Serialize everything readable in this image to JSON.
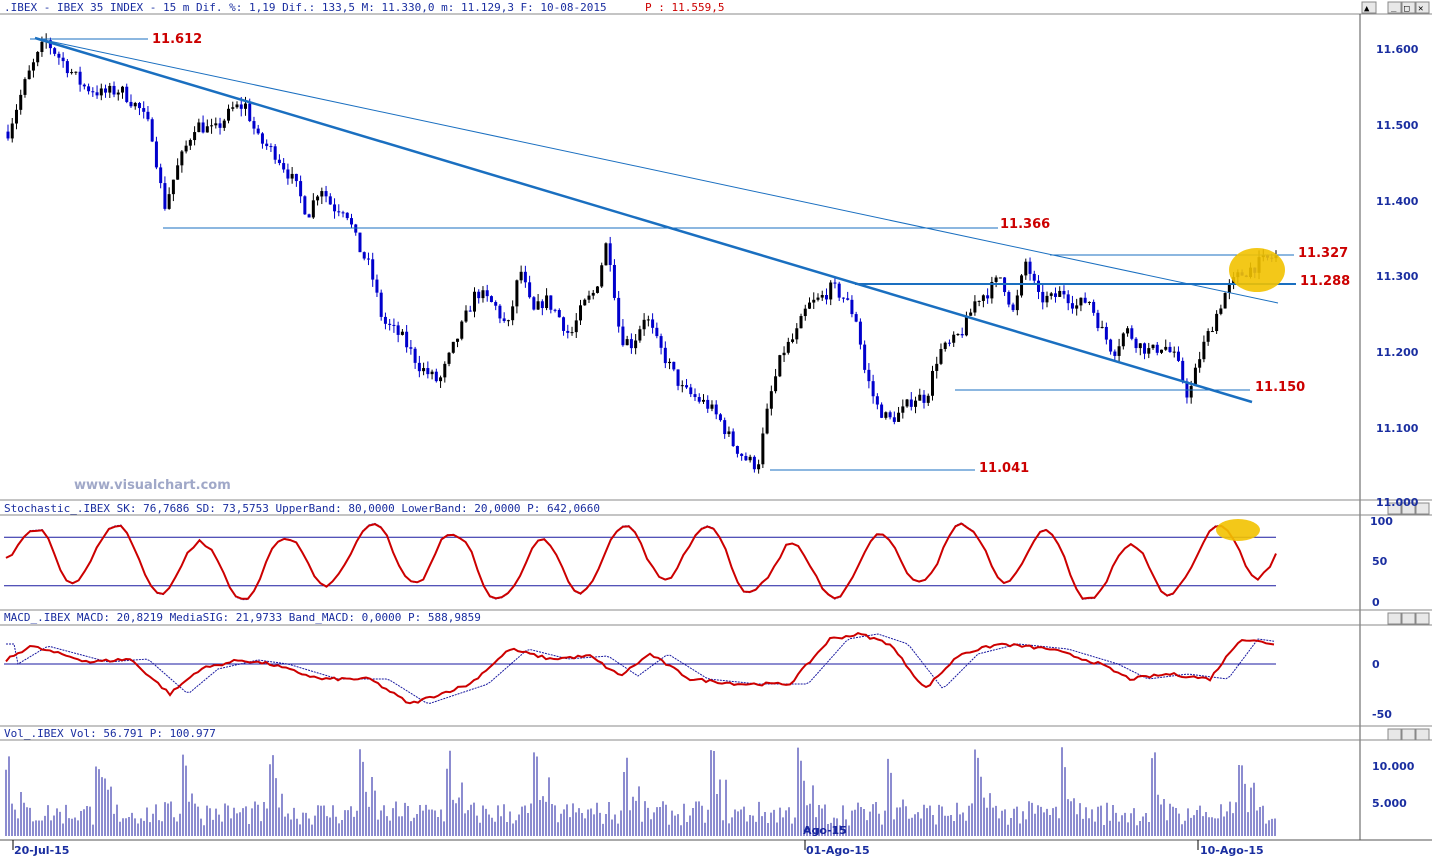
{
  "price_panel": {
    "header_text": ".IBEX - IBEX 35 INDEX -  15 m Dif. %: 1,19 Dif.: 133,5 M: 11.330,0 m: 11.129,3 F: 10-08-2015",
    "header_last": "P : 11.559,5",
    "watermark": "www.visualchart.com",
    "axis_ticks": [
      "11.600",
      "11.500",
      "11.400",
      "11.300",
      "11.200",
      "11.100",
      "11.000"
    ],
    "levels": [
      {
        "label": "11.612"
      },
      {
        "label": "11.366"
      },
      {
        "label": "11.327"
      },
      {
        "label": "11.288"
      },
      {
        "label": "11.150"
      },
      {
        "label": "11.041"
      }
    ]
  },
  "stoch_panel": {
    "header_text": "Stochastic_.IBEX SK: 76,7686 SD: 73,5753 UpperBand: 80,0000 LowerBand: 20,0000 P: 642,0660",
    "axis_ticks": [
      "100",
      "50",
      "0"
    ]
  },
  "macd_panel": {
    "header_text": "MACD_.IBEX MACD: 20,8219 MediaSIG: 21,9733 Band_MACD: 0,0000 P: 588,9859",
    "axis_ticks": [
      "0",
      "-50"
    ]
  },
  "vol_panel": {
    "header_text": "Vol_.IBEX Vol: 56.791 P: 100.977",
    "axis_ticks": [
      "10.000",
      "5.000"
    ],
    "inline_date": "Ago-15"
  },
  "x_axis": {
    "labels": [
      "20-Jul-15",
      "01-Ago-15",
      "10-Ago-15"
    ]
  },
  "window_buttons": [
    "▲",
    "_",
    "□",
    "✕"
  ],
  "colors": {
    "price_blue": "#0000cc",
    "price_black": "#000000",
    "trendline": "#1a6fc0",
    "level_text": "#cc0000",
    "axis_text": "#1a2ea0",
    "stoch_line": "#cc0000",
    "macd_line": "#cc0000",
    "volume": "#1a1aa0",
    "highlight": "#f2c200"
  },
  "chart_data": [
    {
      "type": "candlestick",
      "title": ".IBEX - IBEX 35 INDEX - 15 m",
      "ylim": [
        11000,
        11660
      ],
      "x_labels": [
        "20-Jul-15",
        "01-Ago-15",
        "10-Ago-15"
      ],
      "key_levels": [
        11612,
        11366,
        11327,
        11288,
        11150,
        11041
      ],
      "close_path": [
        [
          0,
          11490
        ],
        [
          3,
          11560
        ],
        [
          6,
          11610
        ],
        [
          9,
          11580
        ],
        [
          12,
          11550
        ],
        [
          15,
          11540
        ],
        [
          18,
          11545
        ],
        [
          21,
          11520
        ],
        [
          23,
          11490
        ],
        [
          25,
          11390
        ],
        [
          27,
          11440
        ],
        [
          30,
          11500
        ],
        [
          33,
          11490
        ],
        [
          36,
          11520
        ],
        [
          38,
          11525
        ],
        [
          40,
          11480
        ],
        [
          43,
          11460
        ],
        [
          46,
          11420
        ],
        [
          48,
          11380
        ],
        [
          50,
          11420
        ],
        [
          52,
          11390
        ],
        [
          54,
          11390
        ],
        [
          56,
          11340
        ],
        [
          58,
          11310
        ],
        [
          60,
          11240
        ],
        [
          63,
          11220
        ],
        [
          66,
          11180
        ],
        [
          69,
          11160
        ],
        [
          72,
          11220
        ],
        [
          75,
          11280
        ],
        [
          78,
          11260
        ],
        [
          80,
          11230
        ],
        [
          82,
          11310
        ],
        [
          84,
          11250
        ],
        [
          86,
          11270
        ],
        [
          88,
          11250
        ],
        [
          90,
          11220
        ],
        [
          92,
          11260
        ],
        [
          94,
          11280
        ],
        [
          96,
          11350
        ],
        [
          98,
          11220
        ],
        [
          100,
          11210
        ],
        [
          102,
          11250
        ],
        [
          104,
          11210
        ],
        [
          106,
          11180
        ],
        [
          108,
          11150
        ],
        [
          110,
          11140
        ],
        [
          112,
          11130
        ],
        [
          114,
          11110
        ],
        [
          116,
          11080
        ],
        [
          118,
          11060
        ],
        [
          120,
          11050
        ],
        [
          122,
          11140
        ],
        [
          124,
          11200
        ],
        [
          126,
          11220
        ],
        [
          128,
          11260
        ],
        [
          130,
          11270
        ],
        [
          132,
          11285
        ],
        [
          134,
          11270
        ],
        [
          136,
          11240
        ],
        [
          137,
          11180
        ],
        [
          139,
          11130
        ],
        [
          141,
          11110
        ],
        [
          143,
          11120
        ],
        [
          145,
          11140
        ],
        [
          147,
          11140
        ],
        [
          149,
          11200
        ],
        [
          151,
          11210
        ],
        [
          153,
          11230
        ],
        [
          155,
          11270
        ],
        [
          157,
          11280
        ],
        [
          159,
          11300
        ],
        [
          161,
          11250
        ],
        [
          163,
          11320
        ],
        [
          165,
          11270
        ],
        [
          167,
          11270
        ],
        [
          169,
          11280
        ],
        [
          171,
          11260
        ],
        [
          173,
          11270
        ],
        [
          175,
          11230
        ],
        [
          177,
          11200
        ],
        [
          179,
          11230
        ],
        [
          181,
          11210
        ],
        [
          183,
          11200
        ],
        [
          185,
          11210
        ],
        [
          187,
          11190
        ],
        [
          189,
          11140
        ],
        [
          191,
          11200
        ],
        [
          193,
          11240
        ],
        [
          195,
          11280
        ],
        [
          197,
          11300
        ],
        [
          199,
          11310
        ],
        [
          201,
          11320
        ],
        [
          203,
          11326
        ]
      ]
    },
    {
      "type": "line",
      "title": "Stochastic_.IBEX",
      "ylim": [
        0,
        100
      ],
      "reference_lines": [
        80,
        20
      ],
      "series": [
        {
          "name": "SK",
          "last": 76.7686
        },
        {
          "name": "SD",
          "last": 73.5753
        }
      ]
    },
    {
      "type": "line",
      "title": "MACD_.IBEX",
      "ylim": [
        -60,
        30
      ],
      "reference_lines": [
        0
      ],
      "series": [
        {
          "name": "MACD",
          "last": 20.8219
        },
        {
          "name": "MediaSIG",
          "last": 21.9733
        }
      ]
    },
    {
      "type": "bar",
      "title": "Vol_.IBEX",
      "ylim": [
        0,
        13000
      ],
      "series": [
        {
          "name": "Vol",
          "last": 56791
        }
      ]
    }
  ]
}
